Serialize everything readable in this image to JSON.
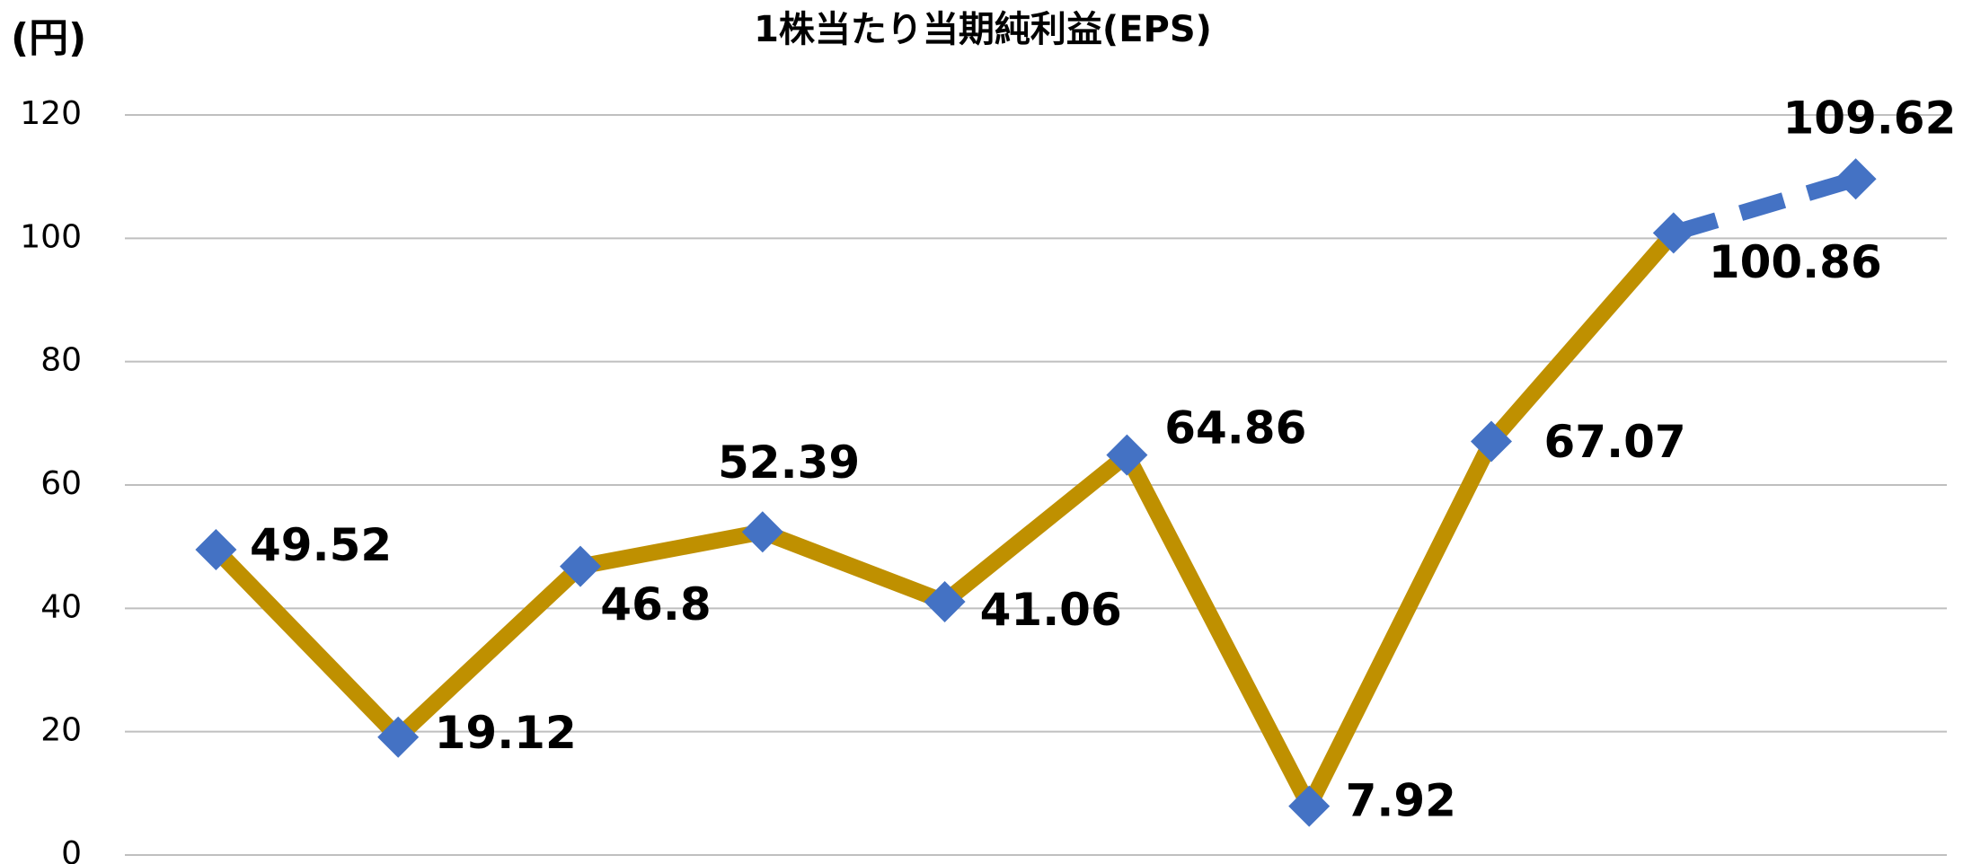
{
  "chart_data": {
    "type": "line",
    "title": "1株当たり当期純利益(EPS)",
    "y_label": "(円)",
    "categories": [
      null,
      null,
      null,
      null,
      null,
      null,
      null,
      null,
      null,
      null
    ],
    "values": [
      49.52,
      19.12,
      46.8,
      52.39,
      41.06,
      64.86,
      7.92,
      67.07,
      100.86,
      109.62
    ],
    "line_color": "#bf9000",
    "marker_color": "#4472c4",
    "forecast_color": "#4472c4",
    "forecast_from": 8,
    "ylim": [
      0,
      120
    ],
    "yticks": [
      0,
      20,
      40,
      60,
      80,
      100,
      120
    ],
    "grid": true
  }
}
